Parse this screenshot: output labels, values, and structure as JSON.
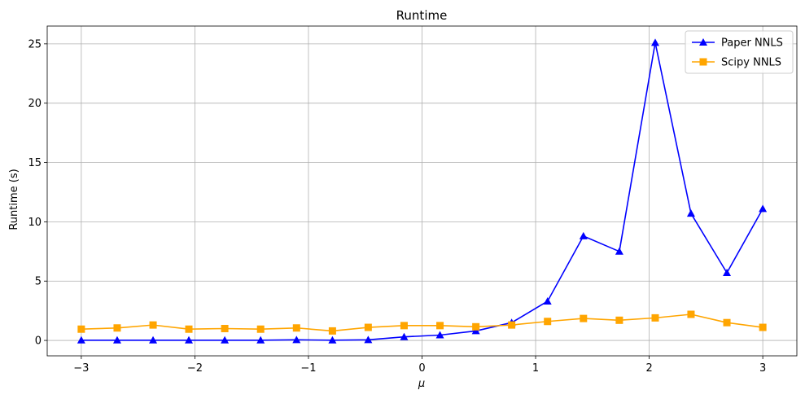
{
  "chart_data": {
    "type": "line",
    "title": "Runtime",
    "xlabel": "μ",
    "ylabel": "Runtime (s)",
    "xlim": [
      -3.3,
      3.3
    ],
    "ylim": [
      -1.3,
      26.5
    ],
    "xticks": [
      -3,
      -2,
      -1,
      0,
      1,
      2,
      3
    ],
    "xtick_labels": [
      "−3",
      "−2",
      "−1",
      "0",
      "1",
      "2",
      "3"
    ],
    "yticks": [
      0,
      5,
      10,
      15,
      20,
      25
    ],
    "ytick_labels": [
      "0",
      "5",
      "10",
      "15",
      "20",
      "25"
    ],
    "grid": true,
    "legend_position": "top-right",
    "x": [
      -3.0,
      -2.684,
      -2.368,
      -2.053,
      -1.737,
      -1.421,
      -1.105,
      -0.789,
      -0.474,
      -0.158,
      0.158,
      0.474,
      0.789,
      1.105,
      1.421,
      1.737,
      2.053,
      2.368,
      2.684,
      3.0
    ],
    "series": [
      {
        "name": "Paper NNLS",
        "color": "#0000ff",
        "marker": "triangle",
        "values": [
          0.02,
          0.02,
          0.02,
          0.02,
          0.02,
          0.02,
          0.05,
          0.02,
          0.05,
          0.3,
          0.45,
          0.8,
          1.5,
          3.3,
          8.8,
          7.5,
          25.1,
          10.7,
          5.7,
          11.1
        ]
      },
      {
        "name": "Scipy NNLS",
        "color": "#ffa500",
        "marker": "square",
        "values": [
          0.95,
          1.05,
          1.3,
          0.95,
          1.0,
          0.95,
          1.05,
          0.8,
          1.1,
          1.25,
          1.25,
          1.15,
          1.3,
          1.6,
          1.85,
          1.7,
          1.9,
          2.2,
          1.5,
          1.1
        ]
      }
    ]
  }
}
